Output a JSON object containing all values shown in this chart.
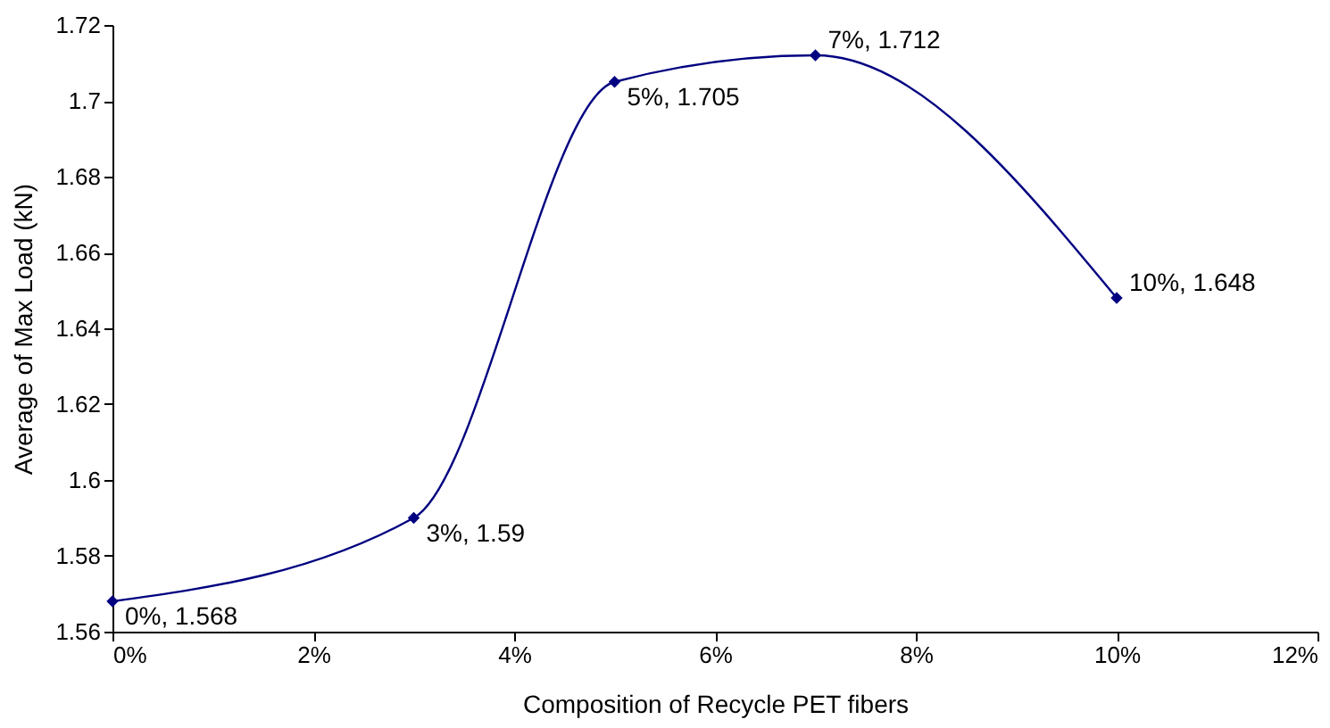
{
  "chart_data": {
    "type": "line",
    "xlabel": "Composition of Recycle PET fibers",
    "ylabel": "Average of Max Load (kN)",
    "x": [
      0,
      3,
      5,
      7,
      10
    ],
    "series": [
      {
        "color": "#000080",
        "values": [
          1.568,
          1.59,
          1.705,
          1.712,
          1.648
        ],
        "value_labels": [
          "0%, 1.568",
          "3%, 1.59",
          "5%, 1.705",
          "7%, 1.712",
          "10%, 1.648"
        ]
      }
    ],
    "xlim": [
      0,
      12
    ],
    "xticks": [
      {
        "value": 0,
        "label": "0%"
      },
      {
        "value": 2,
        "label": "2%"
      },
      {
        "value": 4,
        "label": "4%"
      },
      {
        "value": 6,
        "label": "6%"
      },
      {
        "value": 8,
        "label": "8%"
      },
      {
        "value": 10,
        "label": "10%"
      },
      {
        "value": 12,
        "label": "12%"
      }
    ],
    "ylim": [
      1.56,
      1.72
    ],
    "yticks": [
      1.56,
      1.58,
      1.6,
      1.62,
      1.64,
      1.66,
      1.68,
      1.7,
      1.72
    ],
    "marker": "diamond",
    "line_style": "solid"
  }
}
